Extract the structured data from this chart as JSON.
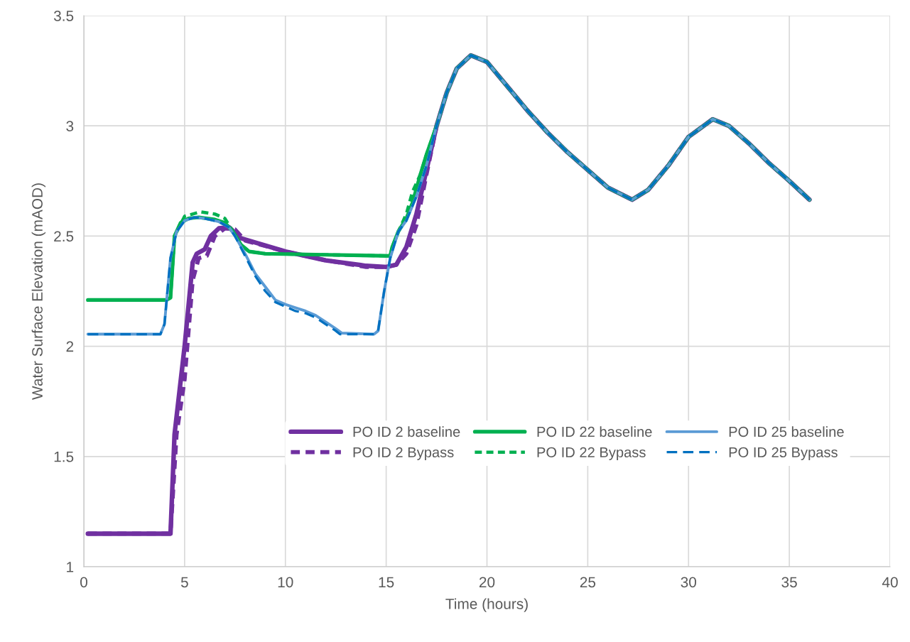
{
  "chart_data": {
    "type": "line",
    "xlabel": "Time (hours)",
    "ylabel": "Water Surface Elevation (mAOD)",
    "xlim": [
      0,
      40
    ],
    "xticks": [
      0,
      5,
      10,
      15,
      20,
      25,
      30,
      35,
      40
    ],
    "ylim": [
      1,
      3.5
    ],
    "yticks": [
      1,
      1.5,
      2,
      2.5,
      3,
      3.5
    ],
    "grid": true,
    "legend": "bottom",
    "marker": "none",
    "series": [
      {
        "name": "PO ID 2 baseline",
        "color": "#7030a0",
        "line_style": "solid",
        "x": [
          0.2,
          4.1,
          4.3,
          4.5,
          5,
          5.4,
          5.6,
          6,
          6.3,
          6.7,
          7.2,
          7.8,
          10,
          12,
          14,
          15,
          15.5,
          16,
          16.5,
          17,
          17.5,
          18,
          18.5,
          19.2,
          20,
          21,
          22,
          23,
          24,
          25,
          26,
          27.2,
          28,
          29,
          30,
          31.2,
          32,
          33,
          34,
          35,
          36
        ],
        "values": [
          1.15,
          1.15,
          1.15,
          1.6,
          2.0,
          2.38,
          2.42,
          2.44,
          2.5,
          2.535,
          2.54,
          2.49,
          2.43,
          2.39,
          2.365,
          2.36,
          2.37,
          2.45,
          2.6,
          2.8,
          3.0,
          3.15,
          3.26,
          3.32,
          3.29,
          3.18,
          3.07,
          2.97,
          2.88,
          2.8,
          2.72,
          2.665,
          2.71,
          2.82,
          2.95,
          3.03,
          3.0,
          2.92,
          2.83,
          2.75,
          2.665
        ]
      },
      {
        "name": "PO ID 2 Bypass",
        "color": "#7030a0",
        "line_style": "dotted",
        "x": [
          0.2,
          4.1,
          4.3,
          4.6,
          5,
          5.4,
          5.7,
          6.1,
          6.5,
          7,
          7.5,
          8,
          10,
          12,
          14,
          15,
          15.5,
          16,
          16.5,
          17,
          17.5,
          18,
          18.5,
          19.2,
          20,
          21,
          22,
          23,
          24,
          25,
          26,
          27.2,
          28,
          29,
          30,
          31.2,
          32,
          33,
          34,
          35,
          36
        ],
        "values": [
          1.15,
          1.15,
          1.15,
          1.6,
          1.85,
          2.3,
          2.4,
          2.41,
          2.5,
          2.535,
          2.53,
          2.48,
          2.43,
          2.39,
          2.36,
          2.36,
          2.37,
          2.42,
          2.55,
          2.78,
          3.0,
          3.15,
          3.26,
          3.32,
          3.29,
          3.18,
          3.07,
          2.97,
          2.88,
          2.8,
          2.72,
          2.665,
          2.71,
          2.82,
          2.95,
          3.03,
          3.0,
          2.92,
          2.83,
          2.75,
          2.665
        ]
      },
      {
        "name": "PO ID 22 baseline",
        "color": "#00b050",
        "line_style": "solid",
        "x": [
          0.2,
          4.1,
          4.3,
          4.5,
          4.8,
          5.2,
          5.7,
          6.5,
          7,
          7.4,
          7.8,
          8.2,
          9,
          12,
          15.2,
          15.3,
          15.6,
          16,
          16.3,
          16.7,
          17,
          17.5,
          18,
          18.5,
          19.2,
          20,
          21,
          22,
          23,
          24,
          25,
          26,
          27.2,
          28,
          29,
          30,
          31.2,
          32,
          33,
          34,
          35,
          36
        ],
        "values": [
          2.21,
          2.21,
          2.22,
          2.5,
          2.56,
          2.58,
          2.585,
          2.575,
          2.56,
          2.52,
          2.46,
          2.43,
          2.42,
          2.415,
          2.41,
          2.45,
          2.52,
          2.58,
          2.65,
          2.78,
          2.87,
          3.0,
          3.15,
          3.26,
          3.32,
          3.29,
          3.18,
          3.07,
          2.97,
          2.88,
          2.8,
          2.72,
          2.665,
          2.71,
          2.82,
          2.95,
          3.03,
          3.0,
          2.92,
          2.83,
          2.75,
          2.665
        ]
      },
      {
        "name": "PO ID 22 Bypass",
        "color": "#00b050",
        "line_style": "dotted",
        "x": [
          0.2,
          4.1,
          4.3,
          4.5,
          5,
          5.8,
          6.5,
          7,
          7.4,
          7.8,
          8.2,
          9,
          12,
          15.2,
          15.3,
          15.6,
          16,
          16.3,
          16.7,
          17,
          17.5,
          18,
          18.5,
          19.2,
          20,
          21,
          22,
          23,
          24,
          25,
          26,
          27.2,
          28,
          29,
          30,
          31.2,
          32,
          33,
          34,
          35,
          36
        ],
        "values": [
          2.21,
          2.21,
          2.22,
          2.5,
          2.59,
          2.61,
          2.6,
          2.58,
          2.52,
          2.46,
          2.43,
          2.42,
          2.415,
          2.41,
          2.45,
          2.52,
          2.6,
          2.7,
          2.78,
          2.87,
          3.0,
          3.15,
          3.26,
          3.32,
          3.29,
          3.18,
          3.07,
          2.97,
          2.88,
          2.8,
          2.72,
          2.665,
          2.71,
          2.82,
          2.95,
          3.03,
          3.0,
          2.92,
          2.83,
          2.75,
          2.665
        ]
      },
      {
        "name": "PO ID 25 baseline",
        "color": "#5b9bd5",
        "line_style": "solid",
        "x": [
          0.2,
          3.8,
          4.0,
          4.3,
          4.6,
          5,
          5.5,
          6,
          6.7,
          7.2,
          7.5,
          8,
          8.5,
          9,
          9.5,
          10,
          10.5,
          11,
          11.5,
          12,
          12.5,
          12.8,
          14.4,
          14.6,
          14.9,
          15.2,
          15.6,
          16,
          16.5,
          17,
          17.5,
          18,
          18.5,
          19.2,
          20,
          21,
          22,
          23,
          24,
          25,
          26,
          27.2,
          28,
          29,
          30,
          31.2,
          32,
          33,
          34,
          35,
          36
        ],
        "values": [
          2.055,
          2.055,
          2.1,
          2.4,
          2.52,
          2.57,
          2.585,
          2.58,
          2.565,
          2.54,
          2.5,
          2.42,
          2.33,
          2.27,
          2.21,
          2.19,
          2.175,
          2.16,
          2.14,
          2.11,
          2.08,
          2.06,
          2.055,
          2.07,
          2.25,
          2.4,
          2.52,
          2.57,
          2.68,
          2.82,
          3.0,
          3.15,
          3.26,
          3.32,
          3.29,
          3.18,
          3.07,
          2.97,
          2.88,
          2.8,
          2.72,
          2.665,
          2.71,
          2.82,
          2.95,
          3.03,
          3.0,
          2.92,
          2.83,
          2.75,
          2.665
        ]
      },
      {
        "name": "PO ID 25 Bypass",
        "color": "#0070c0",
        "line_style": "dashed",
        "x": [
          0.2,
          3.8,
          4.0,
          4.3,
          4.6,
          5,
          5.5,
          6,
          6.7,
          7.2,
          7.5,
          8,
          8.5,
          9,
          9.5,
          10,
          10.5,
          11,
          11.5,
          12,
          12.5,
          12.7,
          14.4,
          14.6,
          14.9,
          15.2,
          15.6,
          16,
          16.5,
          17,
          17.5,
          18,
          18.5,
          19.2,
          20,
          21,
          22,
          23,
          24,
          25,
          26,
          27.2,
          28,
          29,
          30,
          31.2,
          32,
          33,
          34,
          35,
          36
        ],
        "values": [
          2.055,
          2.055,
          2.1,
          2.4,
          2.52,
          2.57,
          2.585,
          2.58,
          2.565,
          2.54,
          2.5,
          2.41,
          2.32,
          2.25,
          2.2,
          2.18,
          2.16,
          2.15,
          2.13,
          2.1,
          2.07,
          2.055,
          2.055,
          2.07,
          2.25,
          2.4,
          2.52,
          2.57,
          2.68,
          2.82,
          3.0,
          3.15,
          3.26,
          3.32,
          3.29,
          3.18,
          3.07,
          2.97,
          2.88,
          2.8,
          2.72,
          2.665,
          2.71,
          2.82,
          2.95,
          3.03,
          3.0,
          2.92,
          2.83,
          2.75,
          2.665
        ]
      }
    ]
  }
}
